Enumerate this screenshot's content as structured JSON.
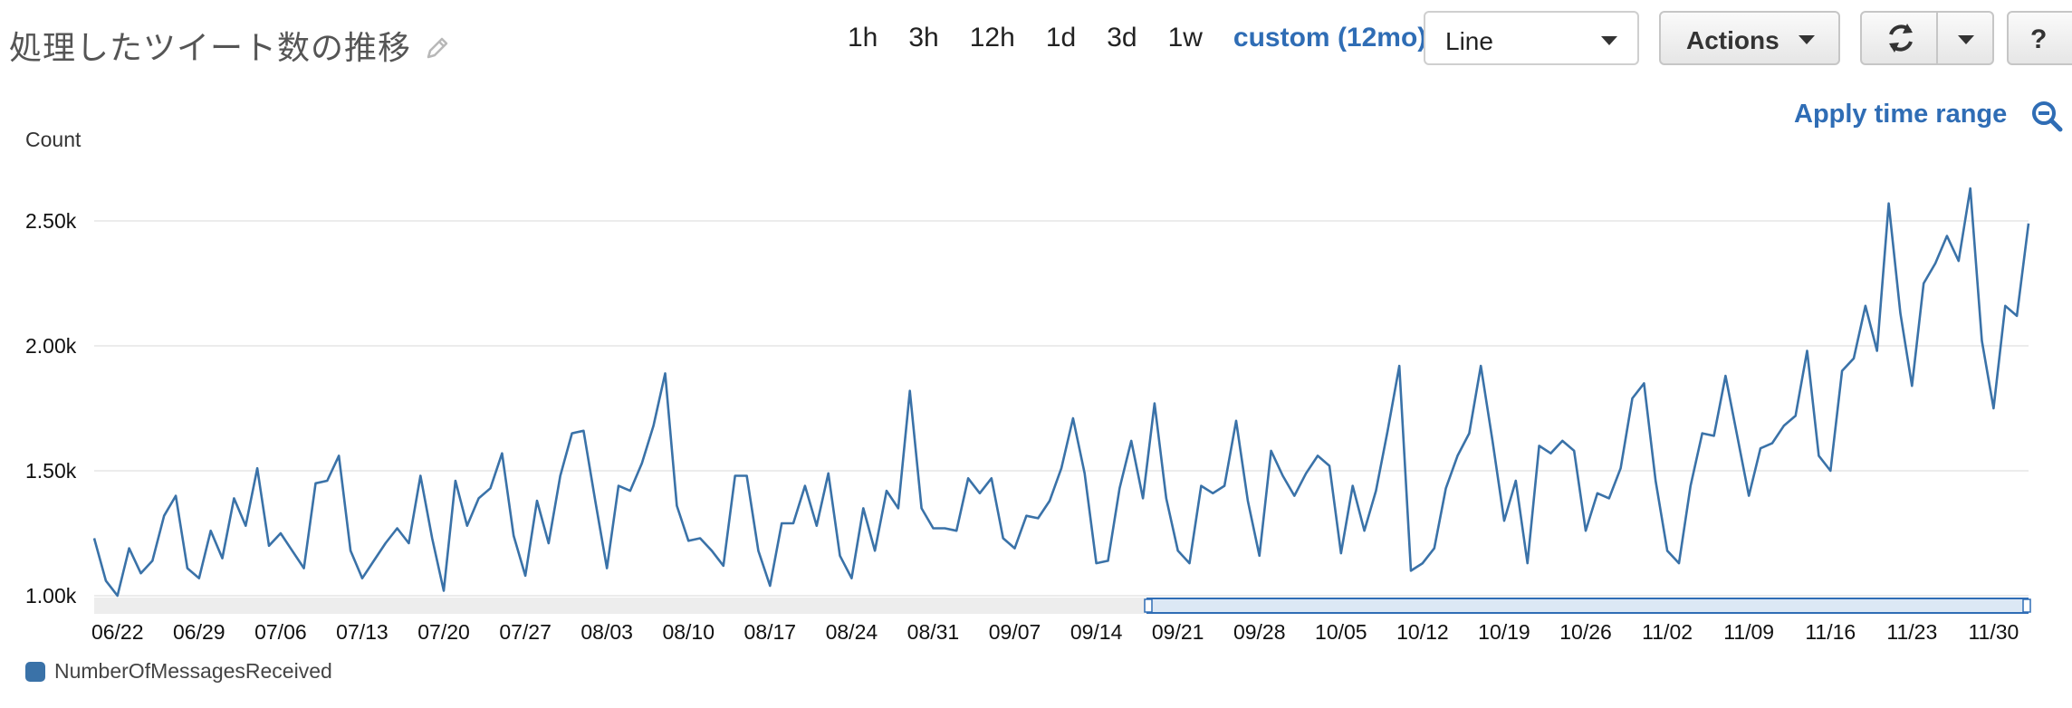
{
  "header": {
    "title": "処理したツイート数の推移",
    "ranges": [
      "1h",
      "3h",
      "12h",
      "1d",
      "3d",
      "1w"
    ],
    "custom_range": "custom (12mo)",
    "chart_type_select": "Line",
    "actions_label": "Actions",
    "help_label": "?",
    "apply_time_range": "Apply time range"
  },
  "colors": {
    "accent": "#2f6db5",
    "series": "#3a72a8",
    "grid": "#e6e6e6",
    "navigator_bg": "#ededed",
    "navigator_selection": "#dce8f5"
  },
  "icons": [
    "pencil-icon",
    "refresh-icon",
    "zoom-out-icon"
  ],
  "chart_data": {
    "type": "line",
    "ylabel": "Count",
    "ylim": [
      1000,
      2600
    ],
    "yticks": [
      1000,
      1500,
      2000,
      2500
    ],
    "ytick_labels": [
      "1.00k",
      "1.50k",
      "2.00k",
      "2.50k"
    ],
    "x_start": "06/22",
    "xtick_labels": [
      "06/22",
      "06/29",
      "07/06",
      "07/13",
      "07/20",
      "07/27",
      "08/03",
      "08/10",
      "08/17",
      "08/24",
      "08/31",
      "09/07",
      "09/14",
      "09/21",
      "09/28",
      "10/05",
      "10/12",
      "10/19",
      "10/26",
      "11/02",
      "11/09",
      "11/16",
      "11/23",
      "11/30"
    ],
    "grid": true,
    "legend_position": "bottom-left",
    "series": [
      {
        "name": "NumberOfMessagesReceived",
        "values": [
          1230,
          1060,
          1000,
          1190,
          1090,
          1140,
          1320,
          1400,
          1110,
          1070,
          1260,
          1150,
          1390,
          1280,
          1510,
          1200,
          1250,
          1180,
          1110,
          1450,
          1460,
          1560,
          1180,
          1070,
          1140,
          1210,
          1270,
          1210,
          1480,
          1230,
          1020,
          1460,
          1280,
          1390,
          1430,
          1570,
          1240,
          1080,
          1380,
          1210,
          1480,
          1650,
          1660,
          1380,
          1110,
          1440,
          1420,
          1530,
          1680,
          1890,
          1360,
          1220,
          1230,
          1180,
          1120,
          1480,
          1480,
          1180,
          1040,
          1290,
          1290,
          1440,
          1280,
          1490,
          1160,
          1070,
          1350,
          1180,
          1420,
          1350,
          1820,
          1350,
          1270,
          1270,
          1260,
          1470,
          1410,
          1470,
          1230,
          1190,
          1320,
          1310,
          1380,
          1510,
          1710,
          1490,
          1130,
          1140,
          1430,
          1620,
          1390,
          1770,
          1390,
          1180,
          1130,
          1440,
          1410,
          1440,
          1700,
          1380,
          1160,
          1580,
          1480,
          1400,
          1490,
          1560,
          1520,
          1170,
          1440,
          1260,
          1420,
          1660,
          1920,
          1100,
          1130,
          1190,
          1430,
          1560,
          1650,
          1920,
          1620,
          1300,
          1460,
          1130,
          1600,
          1570,
          1620,
          1580,
          1260,
          1410,
          1390,
          1510,
          1790,
          1850,
          1460,
          1180,
          1130,
          1440,
          1650,
          1640,
          1880,
          1640,
          1400,
          1590,
          1610,
          1680,
          1720,
          1980,
          1560,
          1500,
          1900,
          1950,
          2160,
          1980,
          2570,
          2130,
          1840,
          2250,
          2330,
          2440,
          2340,
          2630,
          2020,
          1750,
          2160,
          2120,
          2490
        ]
      }
    ]
  }
}
